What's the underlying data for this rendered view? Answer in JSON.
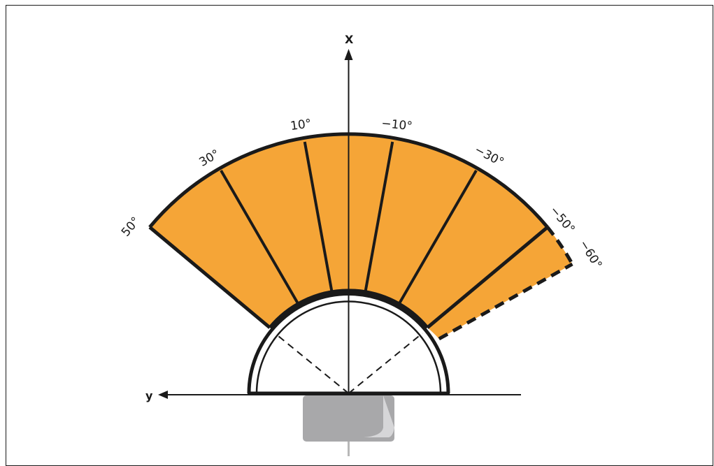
{
  "diagram": {
    "axes": {
      "x_label": "X",
      "y_label": "y"
    },
    "angle_labels": [
      "50°",
      "30°",
      "10°",
      "−10°",
      "−30°",
      "−50°",
      "−60°"
    ],
    "colors": {
      "sector_fill": "#F5A537",
      "outline": "#1a1a1a",
      "sensor_body": "#A8A8AA"
    }
  }
}
